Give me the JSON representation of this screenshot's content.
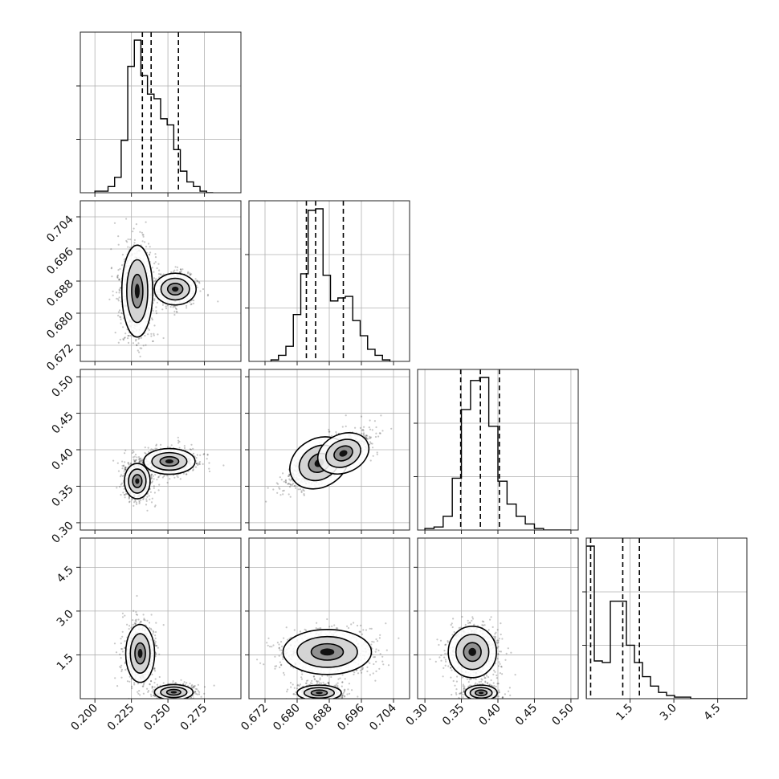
{
  "chart_data": {
    "type": "corner",
    "title": "",
    "grid": true,
    "parameters": [
      {
        "index": 0,
        "range": [
          0.19,
          0.3
        ],
        "ticks": [
          0.2,
          0.225,
          0.25,
          0.275
        ],
        "tick_labels": [
          "0.200",
          "0.225",
          "0.250",
          "0.275"
        ]
      },
      {
        "index": 1,
        "range": [
          0.668,
          0.708
        ],
        "ticks": [
          0.672,
          0.68,
          0.688,
          0.696,
          0.704
        ],
        "tick_labels": [
          "0.672",
          "0.680",
          "0.688",
          "0.696",
          "0.704"
        ]
      },
      {
        "index": 2,
        "range": [
          0.29,
          0.51
        ],
        "ticks": [
          0.3,
          0.35,
          0.4,
          0.45,
          0.5
        ],
        "tick_labels": [
          "0.30",
          "0.35",
          "0.40",
          "0.45",
          "0.50"
        ]
      },
      {
        "index": 3,
        "range": [
          0.0,
          5.5
        ],
        "ticks": [
          1.5,
          3.0,
          4.5
        ],
        "tick_labels": [
          "1.5",
          "3.0",
          "4.5"
        ]
      }
    ],
    "quantiles": [
      [
        0.2325,
        0.2385,
        0.2572
      ],
      [
        0.6823,
        0.6846,
        0.6915
      ],
      [
        0.349,
        0.376,
        0.402
      ],
      [
        0.15,
        1.25,
        1.82
      ]
    ],
    "histograms": [
      {
        "param": 0,
        "bin_start": 0.2,
        "bin_width": 0.0045,
        "counts": [
          1,
          1,
          4,
          10,
          34,
          82,
          99,
          76,
          64,
          61,
          48,
          44,
          28,
          14,
          7,
          4,
          1,
          0
        ]
      },
      {
        "param": 1,
        "bin_start": 0.6735,
        "bin_width": 0.00185,
        "counts": [
          1,
          4,
          10,
          31,
          58,
          100,
          101,
          57,
          40,
          42,
          43,
          27,
          17,
          8,
          4,
          1
        ]
      },
      {
        "param": 2,
        "bin_start": 0.3,
        "bin_width": 0.0125,
        "counts": [
          1,
          2,
          9,
          34,
          79,
          98,
          100,
          68,
          32,
          17,
          9,
          4,
          1,
          0,
          0,
          0
        ]
      },
      {
        "param": 3,
        "bin_start": 0.0,
        "bin_width": 0.275,
        "counts": [
          97,
          24,
          23,
          62,
          62,
          34,
          23,
          14,
          8,
          4,
          2,
          1,
          1,
          0,
          0,
          0,
          0,
          0,
          0,
          0
        ]
      }
    ],
    "pairs": [
      {
        "x": 0,
        "y": 1,
        "modes": [
          {
            "cx": 0.229,
            "cy": 0.6855,
            "sx": 0.0048,
            "sy": 0.0052,
            "w": 0.62
          },
          {
            "cx": 0.255,
            "cy": 0.686,
            "sx": 0.0065,
            "sy": 0.0018,
            "w": 0.38
          }
        ]
      },
      {
        "x": 0,
        "y": 2,
        "modes": [
          {
            "cx": 0.229,
            "cy": 0.357,
            "sx": 0.004,
            "sy": 0.011,
            "w": 0.55
          },
          {
            "cx": 0.251,
            "cy": 0.384,
            "sx": 0.008,
            "sy": 0.008,
            "w": 0.45
          }
        ]
      },
      {
        "x": 1,
        "y": 2,
        "modes": [
          {
            "cx": 0.6855,
            "cy": 0.382,
            "sx": 0.0035,
            "sy": 0.015,
            "w": 0.6,
            "rho": 0.75
          },
          {
            "cx": 0.6915,
            "cy": 0.395,
            "sx": 0.003,
            "sy": 0.012,
            "w": 0.4,
            "rho": 0.6
          }
        ]
      },
      {
        "x": 0,
        "y": 3,
        "modes": [
          {
            "cx": 0.231,
            "cy": 1.55,
            "sx": 0.0045,
            "sy": 0.45,
            "w": 0.55
          },
          {
            "cx": 0.254,
            "cy": 0.22,
            "sx": 0.006,
            "sy": 0.12,
            "w": 0.45
          }
        ]
      },
      {
        "x": 1,
        "y": 3,
        "modes": [
          {
            "cx": 0.6875,
            "cy": 1.6,
            "sx": 0.005,
            "sy": 0.35,
            "w": 0.55
          },
          {
            "cx": 0.6855,
            "cy": 0.2,
            "sx": 0.0025,
            "sy": 0.12,
            "w": 0.45
          }
        ]
      },
      {
        "x": 2,
        "y": 3,
        "modes": [
          {
            "cx": 0.365,
            "cy": 1.6,
            "sx": 0.015,
            "sy": 0.4,
            "w": 0.55
          },
          {
            "cx": 0.377,
            "cy": 0.2,
            "sx": 0.01,
            "sy": 0.12,
            "w": 0.45
          }
        ]
      }
    ]
  }
}
